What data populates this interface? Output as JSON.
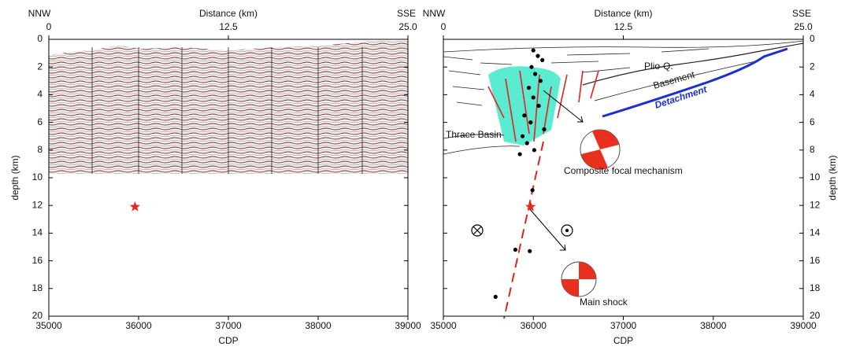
{
  "chart_data": [
    {
      "type": "scatter",
      "top_label": "Distance (km)",
      "left_corner": "NNW",
      "right_corner": "SSE",
      "xlabel": "CDP",
      "ylabel": "depth (km)",
      "xlim": [
        35000,
        39000
      ],
      "xticks": [
        35000,
        36000,
        37000,
        38000,
        39000
      ],
      "toplim": [
        0,
        25
      ],
      "topticks": [
        0,
        12.5,
        {
          "value": 25,
          "label": "25.0"
        }
      ],
      "ylim": [
        0,
        20
      ],
      "yticks": [
        0,
        2,
        4,
        6,
        8,
        10,
        12,
        14,
        16,
        18,
        20
      ],
      "mainshock": {
        "x": 35960,
        "y": 12.1,
        "color": "#e8281e"
      }
    },
    {
      "type": "scatter",
      "top_label": "Distance (km)",
      "left_corner": "NNW",
      "right_corner": "SSE",
      "xlabel": "CDP",
      "ylabel": "depth (km)",
      "xlim": [
        35000,
        39000
      ],
      "xticks": [
        35000,
        36000,
        37000,
        38000,
        39000
      ],
      "toplim": [
        0,
        25
      ],
      "topticks": [
        0,
        12.5,
        {
          "value": 25,
          "label": "25.0"
        }
      ],
      "ylim": [
        0,
        20
      ],
      "yticks": [
        0,
        2,
        4,
        6,
        8,
        10,
        12,
        14,
        16,
        18,
        20
      ],
      "mainshock": {
        "x": 35970,
        "y": 12.1,
        "color": "#e8281e"
      },
      "x": [
        36000,
        36050,
        36100,
        35980,
        36020,
        36080,
        35950,
        36000,
        36060,
        35900,
        35970,
        36120,
        35880,
        35930,
        36010,
        35850,
        35990,
        35800,
        35960,
        35580
      ],
      "values": [
        0.8,
        1.2,
        1.5,
        2.0,
        2.5,
        3.0,
        3.5,
        4.2,
        4.8,
        5.5,
        6.0,
        6.5,
        7.0,
        7.5,
        8.0,
        8.3,
        10.9,
        15.2,
        15.3,
        18.6
      ],
      "color": "#000000",
      "annotations": [
        "Plio-Q.",
        "Basement",
        "Detachment",
        "Thrace Basin",
        "Composite focal mechanism",
        "Main shock"
      ]
    }
  ]
}
